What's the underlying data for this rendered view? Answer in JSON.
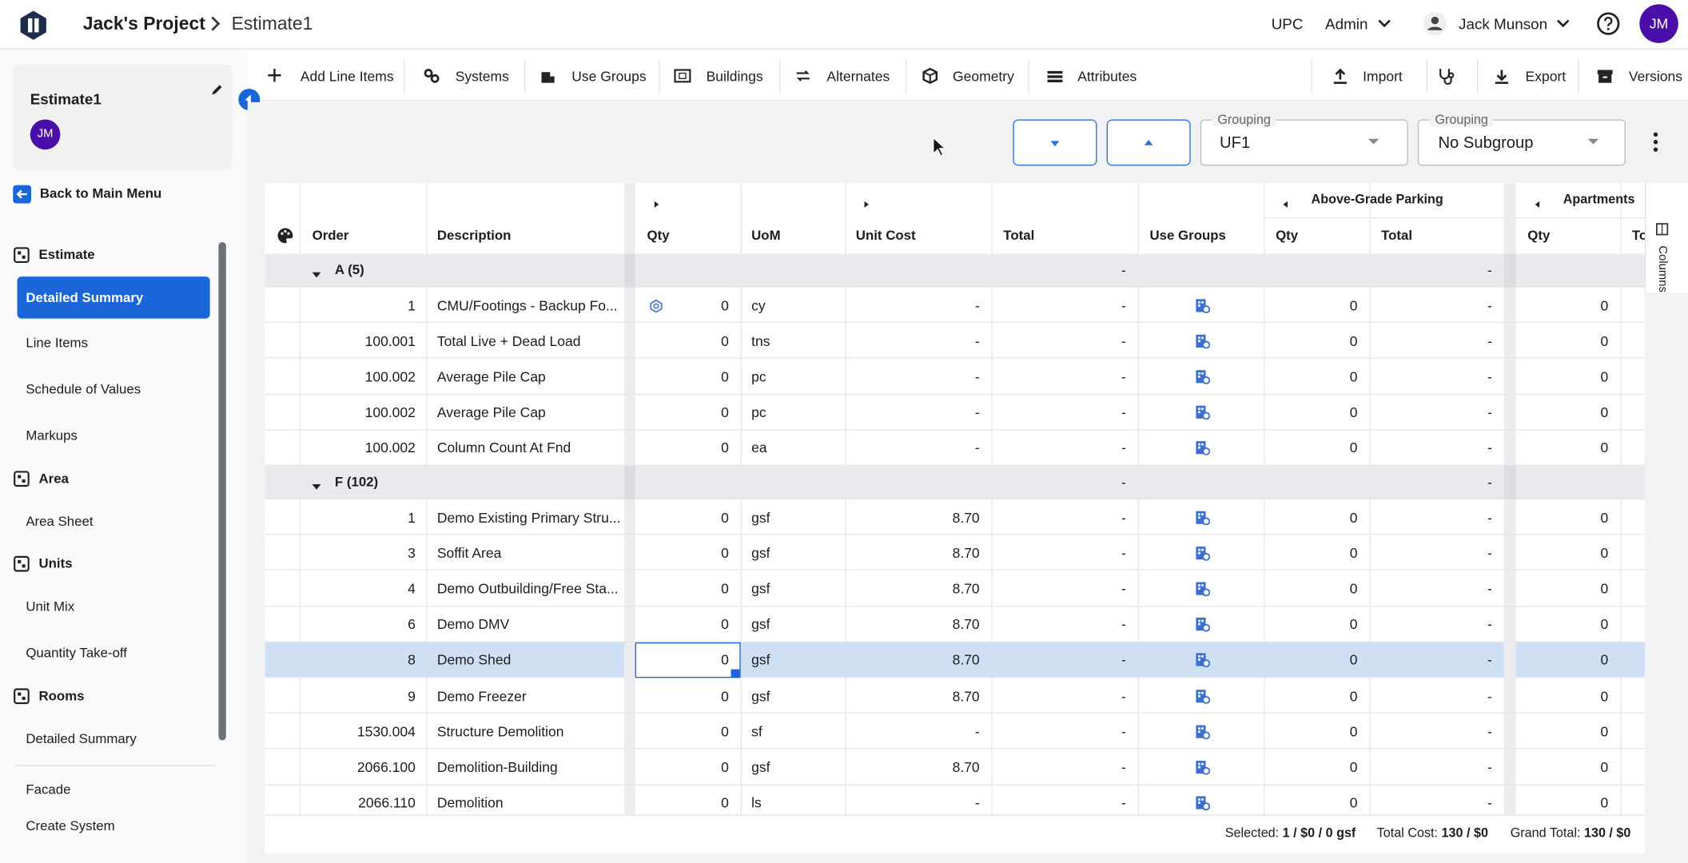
{
  "header": {
    "project": "Jack's Project",
    "estimate": "Estimate1",
    "org": "UPC",
    "role": "Admin",
    "user": "Jack Munson",
    "initials": "JM"
  },
  "toolbar": {
    "left": [
      "Add Line Items",
      "Systems",
      "Use Groups",
      "Buildings",
      "Alternates",
      "Geometry",
      "Attributes"
    ],
    "right": [
      "Import",
      "Export",
      "Versions"
    ]
  },
  "sidebar": {
    "title": "Estimate1",
    "initials": "JM",
    "back": "Back to Main Menu",
    "items": [
      {
        "label": "Estimate",
        "kind": "section"
      },
      {
        "label": "Detailed Summary",
        "kind": "active"
      },
      {
        "label": "Line Items",
        "kind": "item"
      },
      {
        "label": "Schedule of Values",
        "kind": "item"
      },
      {
        "label": "Markups",
        "kind": "item"
      },
      {
        "label": "Area",
        "kind": "section"
      },
      {
        "label": "Area Sheet",
        "kind": "item"
      },
      {
        "label": "Units",
        "kind": "section"
      },
      {
        "label": "Unit Mix",
        "kind": "item"
      },
      {
        "label": "Quantity Take-off",
        "kind": "item"
      },
      {
        "label": "Rooms",
        "kind": "section"
      },
      {
        "label": "Detailed Summary",
        "kind": "item"
      },
      {
        "label": "Facade",
        "kind": "item"
      },
      {
        "label": "Create System",
        "kind": "item"
      }
    ]
  },
  "controls": {
    "grouping_label": "Grouping",
    "grouping": "UF1",
    "subgroup_label": "Grouping",
    "subgroup": "No Subgroup"
  },
  "grid": {
    "group_headers": [
      "Above-Grade Parking",
      "Apartments"
    ],
    "columns": [
      "Order",
      "Description",
      "Qty",
      "UoM",
      "Unit Cost",
      "Total",
      "Use Groups",
      "Qty",
      "Total",
      "Qty",
      "To"
    ],
    "columns_tab": "Columns",
    "groups": [
      {
        "label": "A (5)",
        "total": "-",
        "parking_total": "-",
        "rows": [
          {
            "cells": [
              "1",
              "CMU/Footings - Backup Fo...",
              "0",
              "cy",
              "-",
              "-",
              "0",
              "-",
              "0"
            ],
            "qty_icon": true
          },
          {
            "cells": [
              "100.001",
              "Total Live + Dead Load",
              "0",
              "tns",
              "-",
              "-",
              "0",
              "-",
              "0"
            ]
          },
          {
            "cells": [
              "100.002",
              "Average Pile Cap",
              "0",
              "pc",
              "-",
              "-",
              "0",
              "-",
              "0"
            ]
          },
          {
            "cells": [
              "100.002",
              "Average Pile Cap",
              "0",
              "pc",
              "-",
              "-",
              "0",
              "-",
              "0"
            ]
          },
          {
            "cells": [
              "100.002",
              "Column Count At Fnd",
              "0",
              "ea",
              "-",
              "-",
              "0",
              "-",
              "0"
            ]
          }
        ]
      },
      {
        "label": "F (102)",
        "total": "-",
        "parking_total": "-",
        "rows": [
          {
            "cells": [
              "1",
              "Demo Existing Primary Stru...",
              "0",
              "gsf",
              "8.70",
              "-",
              "0",
              "-",
              "0"
            ]
          },
          {
            "cells": [
              "3",
              "Soffit Area",
              "0",
              "gsf",
              "8.70",
              "-",
              "0",
              "-",
              "0"
            ]
          },
          {
            "cells": [
              "4",
              "Demo Outbuilding/Free Sta...",
              "0",
              "gsf",
              "8.70",
              "-",
              "0",
              "-",
              "0"
            ]
          },
          {
            "cells": [
              "6",
              "Demo DMV",
              "0",
              "gsf",
              "8.70",
              "-",
              "0",
              "-",
              "0"
            ]
          },
          {
            "cells": [
              "8",
              "Demo Shed",
              "0",
              "gsf",
              "8.70",
              "-",
              "0",
              "-",
              "0"
            ],
            "selected": true
          },
          {
            "cells": [
              "9",
              "Demo Freezer",
              "0",
              "gsf",
              "8.70",
              "-",
              "0",
              "-",
              "0"
            ]
          },
          {
            "cells": [
              "1530.004",
              "Structure Demolition",
              "0",
              "sf",
              "-",
              "-",
              "0",
              "-",
              "0"
            ]
          },
          {
            "cells": [
              "2066.100",
              "Demolition-Building",
              "0",
              "gsf",
              "8.70",
              "-",
              "0",
              "-",
              "0"
            ]
          },
          {
            "cells": [
              "2066.110",
              "Demolition",
              "0",
              "ls",
              "-",
              "-",
              "0",
              "-",
              "0"
            ]
          }
        ]
      }
    ]
  },
  "footer": {
    "selected_label": "Selected:",
    "selected": "1 / $0 / 0 gsf",
    "total_label": "Total Cost:",
    "total": "130 / $0",
    "grand_label": "Grand Total:",
    "grand": "130 / $0"
  }
}
